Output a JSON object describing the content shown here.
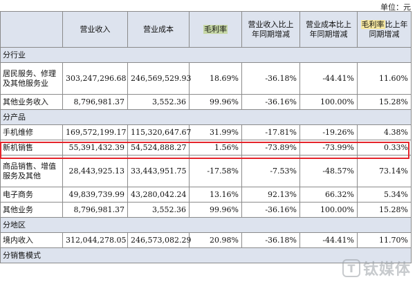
{
  "unit_label": "单位：元",
  "headers": {
    "col1": "",
    "col2": "营业收入",
    "col3": "营业成本",
    "col4": "毛利率",
    "col5": "营业收入比上年同期增减",
    "col6": "营业成本比上年同期增减",
    "col7_hl": "毛利率",
    "col7_rest": "比上年同期增减"
  },
  "sections": {
    "industry": "分行业",
    "product": "分产品",
    "region": "分地区",
    "sales_mode": "分销售模式"
  },
  "rows": {
    "r1": {
      "label": "居民服务、修理及其他服务业",
      "revenue": "303,247,296.68",
      "cost": "246,569,529.93",
      "margin": "18.69%",
      "rev_chg": "-36.18%",
      "cost_chg": "-44.41%",
      "margin_chg": "11.60%"
    },
    "r2": {
      "label": "其他业务收入",
      "revenue": "8,796,981.37",
      "cost": "3,552.36",
      "margin": "99.96%",
      "rev_chg": "-36.16%",
      "cost_chg": "100.00%",
      "margin_chg": "15.28%"
    },
    "r3": {
      "label": "手机维修",
      "revenue": "169,572,199.17",
      "cost": "115,320,647.67",
      "margin": "31.99%",
      "rev_chg": "-17.81%",
      "cost_chg": "-19.26%",
      "margin_chg": "4.38%"
    },
    "r4": {
      "label": "新机销售",
      "revenue": "55,391,432.39",
      "cost": "54,524,888.27",
      "margin": "1.56%",
      "rev_chg": "-73.89%",
      "cost_chg": "-73.99%",
      "margin_chg": "0.33%"
    },
    "r5": {
      "label": "商品销售、增值服务及其他",
      "revenue": "28,443,925.13",
      "cost": "33,443,951.75",
      "margin": "-17.58%",
      "rev_chg": "-7.53%",
      "cost_chg": "-48.57%",
      "margin_chg": "73.14%"
    },
    "r6": {
      "label": "电子商务",
      "revenue": "49,839,739.99",
      "cost": "43,280,042.24",
      "margin": "13.16%",
      "rev_chg": "92.13%",
      "cost_chg": "66.32%",
      "margin_chg": "5.34%"
    },
    "r7": {
      "label": "其他业务",
      "revenue": "8,796,981.37",
      "cost": "3,552.36",
      "margin": "99.96%",
      "rev_chg": "-36.16%",
      "cost_chg": "100.00%",
      "margin_chg": "15.28%"
    },
    "r8": {
      "label": "境内收入",
      "revenue": "312,044,278.05",
      "cost": "246,573,082.29",
      "margin": "20.98%",
      "rev_chg": "-36.18%",
      "cost_chg": "-44.41%",
      "margin_chg": "11.70%"
    }
  },
  "watermark": {
    "icon": "T",
    "text": "钛媒体"
  },
  "colors": {
    "header_bg": "#dde3ee",
    "highlight_green": "#c6d7a6",
    "highlight_yellow": "#f5e7a0",
    "red_box": "#e4242b"
  }
}
